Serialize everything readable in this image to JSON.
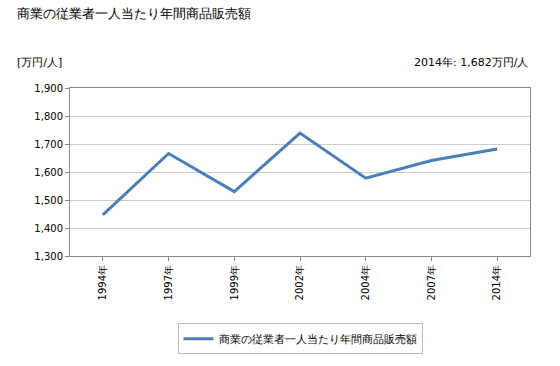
{
  "chart_data": {
    "type": "line",
    "title": "商業の従業者一人当たり年間商品販売額",
    "ylabel": "[万円/人]",
    "annotations": [
      "2014年: 1,682万円/人"
    ],
    "categories": [
      "1994年",
      "1997年",
      "1999年",
      "2002年",
      "2004年",
      "2007年",
      "2014年"
    ],
    "series": [
      {
        "name": "商業の従業者一人当たり年間商品販売額",
        "color": "#4a7ebb",
        "values": [
          1447,
          1666,
          1530,
          1739,
          1578,
          1641,
          1682
        ]
      }
    ],
    "ylim": [
      1300,
      1900
    ],
    "yticks": [
      {
        "value": 1300,
        "label": "1,300"
      },
      {
        "value": 1400,
        "label": "1,400"
      },
      {
        "value": 1500,
        "label": "1,500"
      },
      {
        "value": 1600,
        "label": "1,600"
      },
      {
        "value": 1700,
        "label": "1,700"
      },
      {
        "value": 1800,
        "label": "1,800"
      },
      {
        "value": 1900,
        "label": "1,900"
      }
    ],
    "grid": true,
    "legend": "bottom"
  }
}
